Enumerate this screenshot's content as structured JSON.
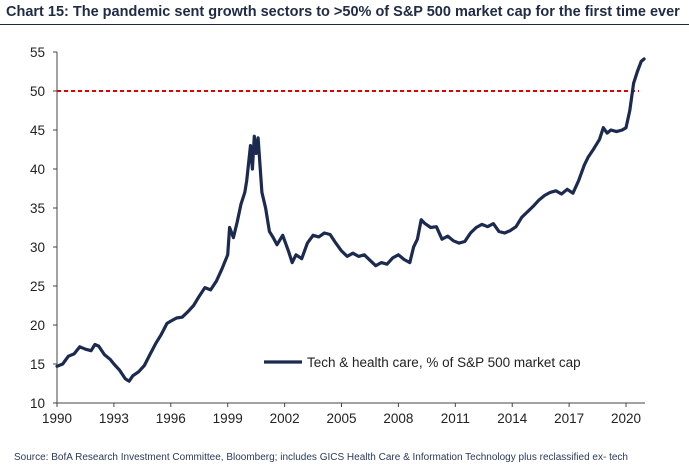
{
  "title": "Chart 15: The pandemic sent growth sectors to >50% of S&P 500 market cap for the first time ever",
  "source": "Source: BofA Research Investment Committee, Bloomberg; includes GICS Health Care & Information Technology plus reclassified ex- tech",
  "colors": {
    "series": "#1b2a4e",
    "reference": "#e00000",
    "axis": "#444444",
    "title": "#1f2a44"
  },
  "chart_data": {
    "type": "line",
    "title": "Chart 15: The pandemic sent growth sectors to >50% of S&P 500 market cap for the first time ever",
    "xlabel": "",
    "ylabel": "",
    "xlim": [
      1990,
      2021
    ],
    "ylim": [
      10,
      55
    ],
    "x_ticks": [
      "1990",
      "1993",
      "1996",
      "1999",
      "2002",
      "2005",
      "2008",
      "2011",
      "2014",
      "2017",
      "2020"
    ],
    "y_ticks": [
      "10",
      "15",
      "20",
      "25",
      "30",
      "35",
      "40",
      "45",
      "50",
      "55"
    ],
    "grid": false,
    "legend_position": "bottom-right",
    "reference_lines": [
      {
        "y": 50,
        "style": "dashed",
        "color": "#e00000"
      }
    ],
    "series": [
      {
        "name": "Tech & health care, % of S&P 500 market cap",
        "x": [
          1990,
          1990.3,
          1990.6,
          1990.9,
          1991.2,
          1991.5,
          1991.8,
          1992.0,
          1992.2,
          1992.5,
          1992.8,
          1993.0,
          1993.3,
          1993.6,
          1993.8,
          1994.0,
          1994.3,
          1994.6,
          1994.9,
          1995.2,
          1995.5,
          1995.8,
          1996.0,
          1996.3,
          1996.6,
          1996.9,
          1997.2,
          1997.5,
          1997.8,
          1998.1,
          1998.4,
          1998.7,
          1999.0,
          1999.1,
          1999.3,
          1999.5,
          1999.7,
          1999.9,
          2000.0,
          2000.2,
          2000.3,
          2000.4,
          2000.5,
          2000.6,
          2000.7,
          2000.8,
          2001.0,
          2001.2,
          2001.4,
          2001.6,
          2001.9,
          2002.2,
          2002.4,
          2002.6,
          2002.9,
          2003.2,
          2003.5,
          2003.8,
          2004.1,
          2004.4,
          2004.7,
          2005.0,
          2005.3,
          2005.6,
          2005.9,
          2006.2,
          2006.5,
          2006.8,
          2007.1,
          2007.4,
          2007.7,
          2008.0,
          2008.3,
          2008.6,
          2008.8,
          2009.0,
          2009.2,
          2009.4,
          2009.7,
          2010.0,
          2010.3,
          2010.6,
          2010.9,
          2011.2,
          2011.5,
          2011.8,
          2012.1,
          2012.4,
          2012.7,
          2013.0,
          2013.3,
          2013.6,
          2013.9,
          2014.2,
          2014.5,
          2014.8,
          2015.1,
          2015.4,
          2015.7,
          2016.0,
          2016.3,
          2016.6,
          2016.9,
          2017.2,
          2017.5,
          2017.8,
          2018.0,
          2018.3,
          2018.6,
          2018.8,
          2019.0,
          2019.2,
          2019.5,
          2019.8,
          2020.0,
          2020.2,
          2020.4,
          2020.6,
          2020.8,
          2020.95
        ],
        "values": [
          14.7,
          15.0,
          16.0,
          16.3,
          17.2,
          16.9,
          16.7,
          17.5,
          17.3,
          16.2,
          15.6,
          15.0,
          14.2,
          13.1,
          12.8,
          13.5,
          14.0,
          14.8,
          16.2,
          17.6,
          18.8,
          20.2,
          20.5,
          20.9,
          21.0,
          21.7,
          22.5,
          23.7,
          24.8,
          24.5,
          25.6,
          27.2,
          29.0,
          32.5,
          31.2,
          33.2,
          35.5,
          37.0,
          38.5,
          43.0,
          40.0,
          44.2,
          42.0,
          44.0,
          40.5,
          37.0,
          35.0,
          32.0,
          31.2,
          30.3,
          31.5,
          29.5,
          28.0,
          29.0,
          28.5,
          30.5,
          31.5,
          31.3,
          31.8,
          31.6,
          30.5,
          29.5,
          28.8,
          29.2,
          28.8,
          29.0,
          28.3,
          27.6,
          28.0,
          27.8,
          28.6,
          29.0,
          28.4,
          28.0,
          30.0,
          31.0,
          33.5,
          33.0,
          32.5,
          32.6,
          31.0,
          31.4,
          30.8,
          30.5,
          30.7,
          31.8,
          32.5,
          32.9,
          32.6,
          33.0,
          32.0,
          31.8,
          32.1,
          32.6,
          33.8,
          34.5,
          35.2,
          36.0,
          36.6,
          37.0,
          37.2,
          36.8,
          37.4,
          36.9,
          38.5,
          40.5,
          41.5,
          42.6,
          43.8,
          45.3,
          44.6,
          45.0,
          44.8,
          45.0,
          45.3,
          47.5,
          51.0,
          52.5,
          53.8,
          54.1
        ]
      }
    ]
  }
}
